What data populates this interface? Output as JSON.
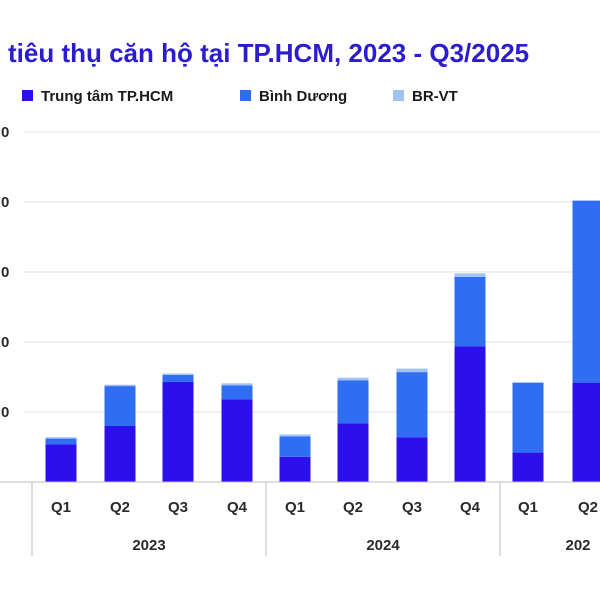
{
  "chart_data": {
    "type": "bar",
    "stacked": true,
    "title": "tiêu thụ căn hộ tại TP.HCM, 2023 - Q3/2025",
    "legend_position": "top-left",
    "categories": [
      "Q1",
      "Q2",
      "Q3",
      "Q4",
      "Q1",
      "Q2",
      "Q3",
      "Q4",
      "Q1",
      "Q2"
    ],
    "groups": [
      {
        "label": "2023",
        "count": 4
      },
      {
        "label": "2024",
        "count": 4
      },
      {
        "label": "202",
        "count": 2
      }
    ],
    "y_ticks": [
      "0",
      "0",
      "0",
      "0",
      "0"
    ],
    "ylim": [
      0,
      5
    ],
    "series": [
      {
        "name": "Trung tâm TP.HCM",
        "color": "#2c10ec",
        "values": [
          0.54,
          0.8,
          1.43,
          1.18,
          0.36,
          0.84,
          0.64,
          1.94,
          0.42,
          1.42
        ]
      },
      {
        "name": "Bình Dương",
        "color": "#2f6df2",
        "values": [
          0.08,
          0.57,
          0.1,
          0.2,
          0.29,
          0.61,
          0.93,
          0.99,
          1.0,
          2.6
        ]
      },
      {
        "name": "BR-VT",
        "color": "#a2c2f4",
        "values": [
          0.02,
          0.02,
          0.02,
          0.03,
          0.03,
          0.04,
          0.05,
          0.05,
          0.0,
          0.0
        ]
      }
    ],
    "grid": true
  }
}
